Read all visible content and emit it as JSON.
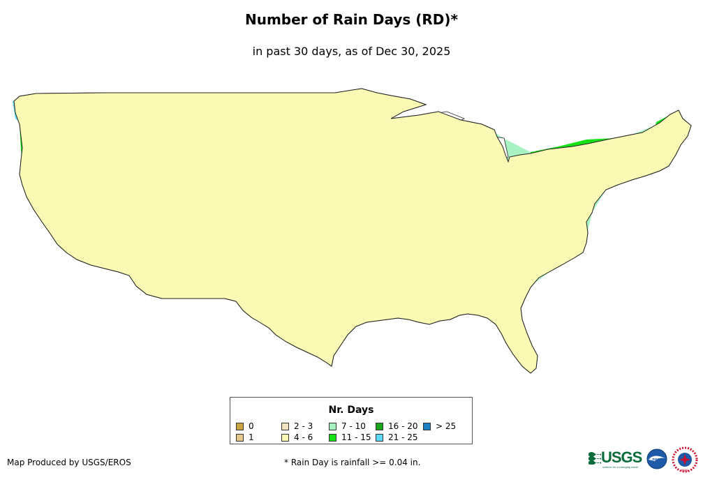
{
  "title": "Number of Rain Days (RD)*",
  "subtitle": "in past 30 days, as of Dec 30, 2025",
  "legend": {
    "title": "Nr. Days",
    "items": [
      {
        "label": "0",
        "color": "#c9a63f"
      },
      {
        "label": "1",
        "color": "#e3ca8c"
      },
      {
        "label": "2 - 3",
        "color": "#f2e2c2"
      },
      {
        "label": "4 - 6",
        "color": "#fafab4"
      },
      {
        "label": "7 - 10",
        "color": "#a9f2c4"
      },
      {
        "label": "11 - 15",
        "color": "#16e016"
      },
      {
        "label": "16 - 20",
        "color": "#1aa61a"
      },
      {
        "label": "21 - 25",
        "color": "#5cd9f2"
      },
      {
        "label": "> 25",
        "color": "#1c7fbf"
      }
    ]
  },
  "footer": {
    "produced_by": "Map Produced by USGS/EROS",
    "footnote": "* Rain Day is rainfall >= 0.04 in."
  },
  "logos": {
    "usgs": "USGS",
    "usgs_tagline": "science for a changing world",
    "noaa": "noaa",
    "nws": "NWS"
  }
}
